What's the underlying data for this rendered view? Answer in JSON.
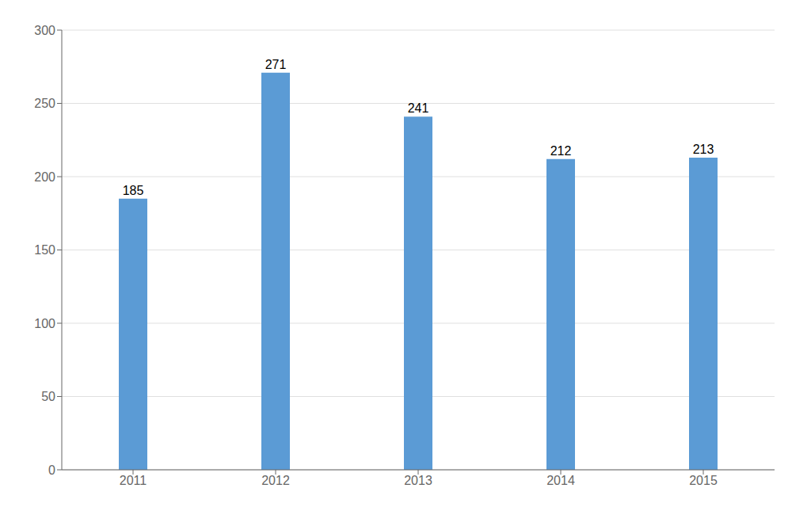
{
  "chart_data": {
    "type": "bar",
    "categories": [
      "2011",
      "2012",
      "2013",
      "2014",
      "2015"
    ],
    "values": [
      185,
      271,
      241,
      212,
      213
    ],
    "color": "#5B9BD5",
    "ylim": [
      0,
      300
    ],
    "yticks": [
      0,
      50,
      100,
      150,
      200,
      250,
      300
    ],
    "grid": true,
    "data_labels": true
  }
}
